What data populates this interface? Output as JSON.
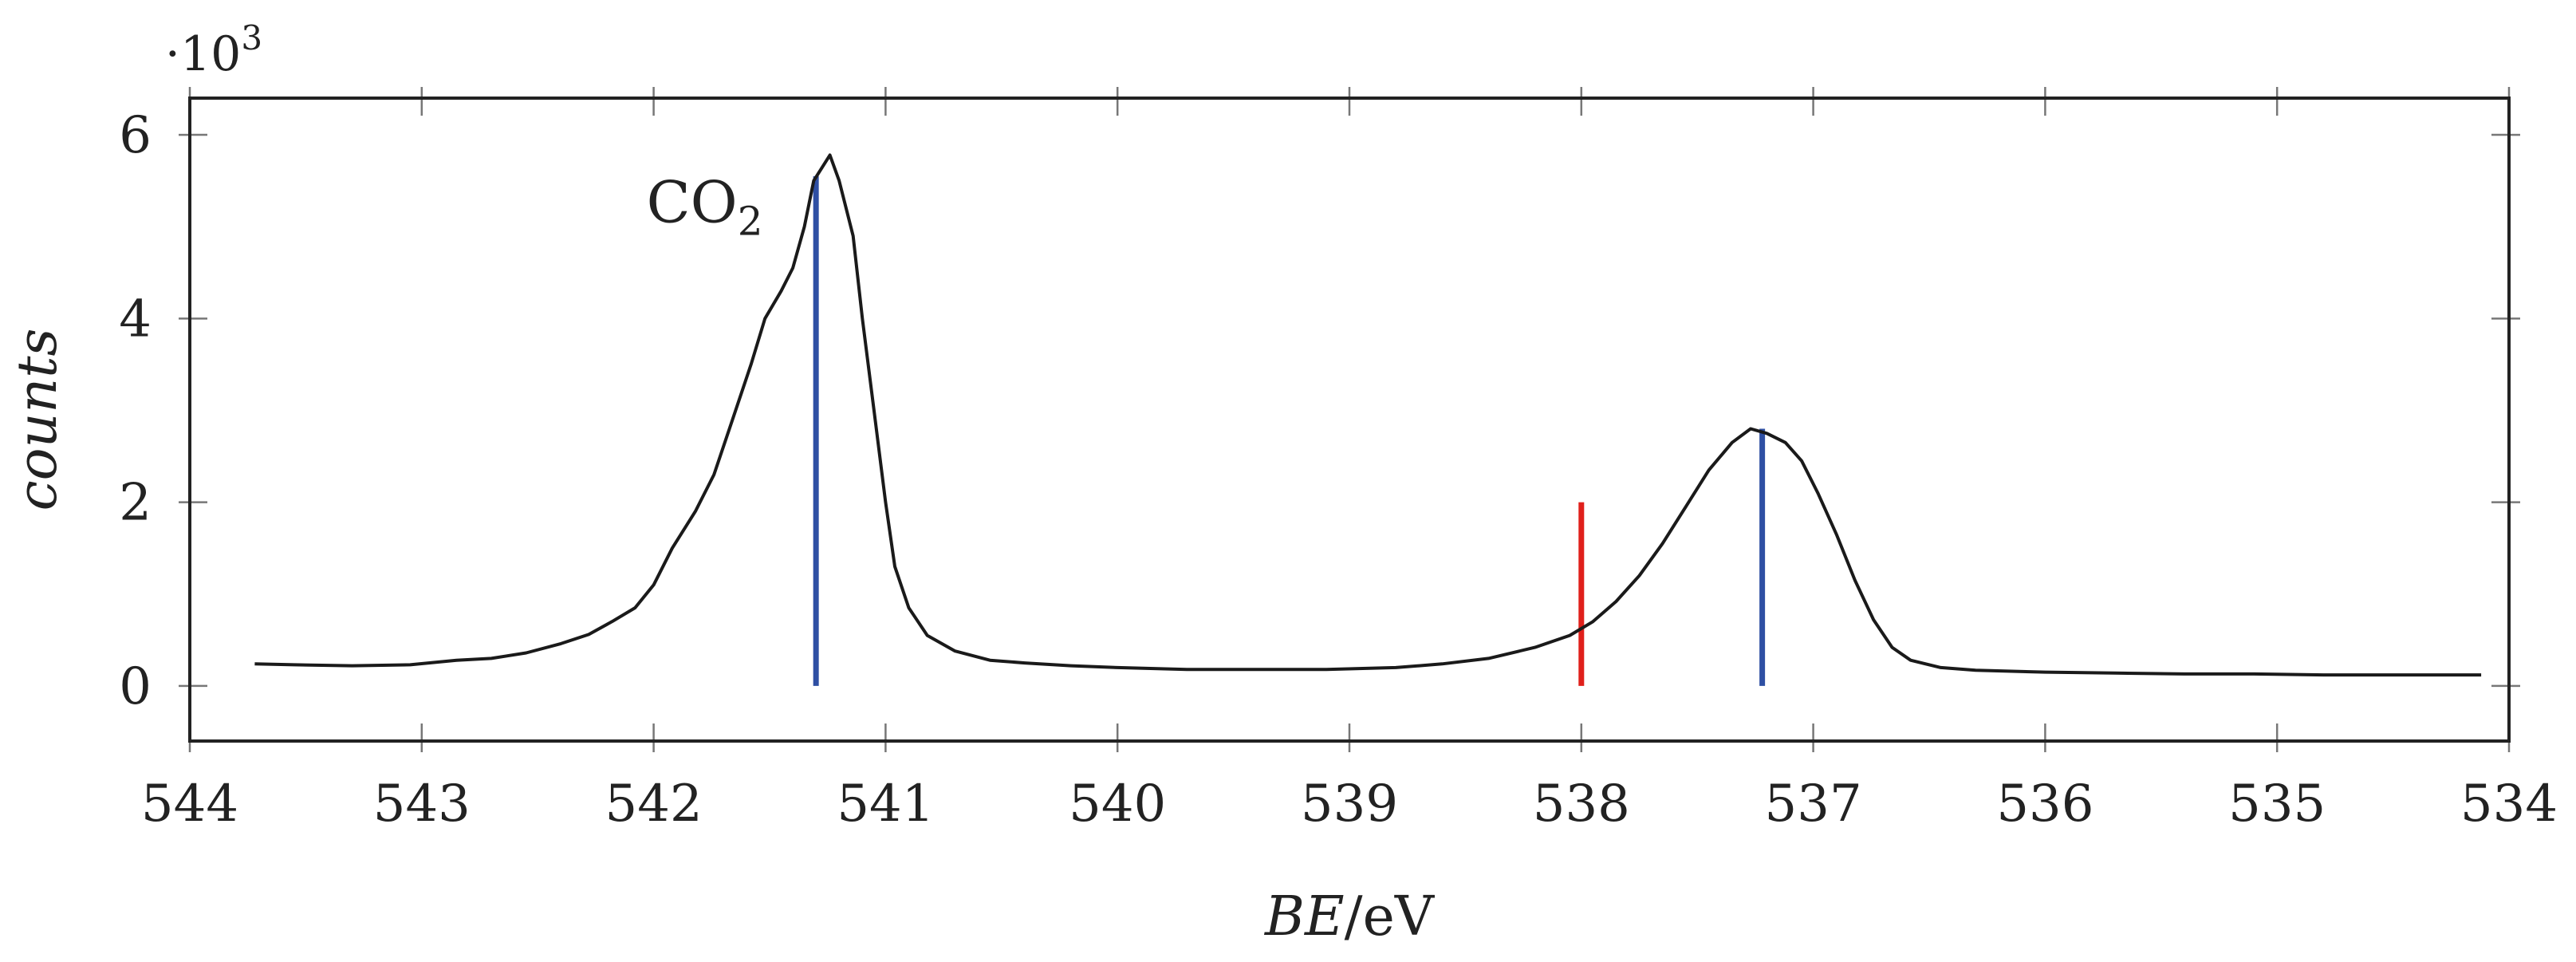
{
  "chart_data": {
    "type": "line",
    "title": "",
    "xlabel": {
      "var": "BE",
      "sep": "/",
      "unit": "eV"
    },
    "ylabel": "counts",
    "y_multiplier": {
      "base": "·10",
      "exp": "3"
    },
    "xlim": [
      544,
      534
    ],
    "ylim": [
      -0.6,
      6.4
    ],
    "x_reversed": true,
    "xticks": [
      "544",
      "543",
      "542",
      "541",
      "540",
      "539",
      "538",
      "537",
      "536",
      "535",
      "534"
    ],
    "yticks": [
      "0",
      "2",
      "4",
      "6"
    ],
    "grid": false,
    "legend": "none",
    "annotations": [
      {
        "text": "CO",
        "sub": "2",
        "x": 541.78,
        "y": 5.05
      }
    ],
    "series": [
      {
        "color": "#1a1a1a",
        "points": [
          [
            543.72,
            0.24
          ],
          [
            543.55,
            0.23
          ],
          [
            543.3,
            0.22
          ],
          [
            543.05,
            0.23
          ],
          [
            542.85,
            0.28
          ],
          [
            542.7,
            0.3
          ],
          [
            542.55,
            0.36
          ],
          [
            542.4,
            0.46
          ],
          [
            542.28,
            0.56
          ],
          [
            542.18,
            0.7
          ],
          [
            542.08,
            0.85
          ],
          [
            542.0,
            1.1
          ],
          [
            541.92,
            1.5
          ],
          [
            541.82,
            1.9
          ],
          [
            541.74,
            2.3
          ],
          [
            541.66,
            2.9
          ],
          [
            541.58,
            3.5
          ],
          [
            541.52,
            4.0
          ],
          [
            541.45,
            4.3
          ],
          [
            541.4,
            4.55
          ],
          [
            541.35,
            5.0
          ],
          [
            541.31,
            5.5
          ],
          [
            541.28,
            5.62
          ],
          [
            541.24,
            5.78
          ],
          [
            541.2,
            5.5
          ],
          [
            541.14,
            4.9
          ],
          [
            541.1,
            4.0
          ],
          [
            541.05,
            3.0
          ],
          [
            541.0,
            2.0
          ],
          [
            540.96,
            1.3
          ],
          [
            540.9,
            0.85
          ],
          [
            540.82,
            0.55
          ],
          [
            540.7,
            0.38
          ],
          [
            540.55,
            0.28
          ],
          [
            540.4,
            0.25
          ],
          [
            540.2,
            0.22
          ],
          [
            540.0,
            0.2
          ],
          [
            539.7,
            0.18
          ],
          [
            539.4,
            0.18
          ],
          [
            539.1,
            0.18
          ],
          [
            538.8,
            0.2
          ],
          [
            538.6,
            0.24
          ],
          [
            538.4,
            0.3
          ],
          [
            538.2,
            0.42
          ],
          [
            538.05,
            0.55
          ],
          [
            537.95,
            0.7
          ],
          [
            537.85,
            0.92
          ],
          [
            537.75,
            1.2
          ],
          [
            537.65,
            1.55
          ],
          [
            537.55,
            1.95
          ],
          [
            537.45,
            2.35
          ],
          [
            537.35,
            2.65
          ],
          [
            537.27,
            2.8
          ],
          [
            537.2,
            2.75
          ],
          [
            537.12,
            2.65
          ],
          [
            537.05,
            2.45
          ],
          [
            536.98,
            2.1
          ],
          [
            536.9,
            1.65
          ],
          [
            536.82,
            1.15
          ],
          [
            536.74,
            0.72
          ],
          [
            536.66,
            0.42
          ],
          [
            536.58,
            0.28
          ],
          [
            536.45,
            0.2
          ],
          [
            536.3,
            0.17
          ],
          [
            536.0,
            0.15
          ],
          [
            535.7,
            0.14
          ],
          [
            535.4,
            0.13
          ],
          [
            535.1,
            0.13
          ],
          [
            534.8,
            0.12
          ],
          [
            534.5,
            0.12
          ],
          [
            534.12,
            0.12
          ]
        ]
      }
    ],
    "markers": [
      {
        "x": 541.3,
        "y0": 0,
        "y1": 5.55,
        "color": "#2e4fa3"
      },
      {
        "x": 537.22,
        "y0": 0,
        "y1": 2.8,
        "color": "#2e4fa3"
      },
      {
        "x": 538.0,
        "y0": 0,
        "y1": 2.0,
        "color": "#e0201b"
      }
    ]
  }
}
